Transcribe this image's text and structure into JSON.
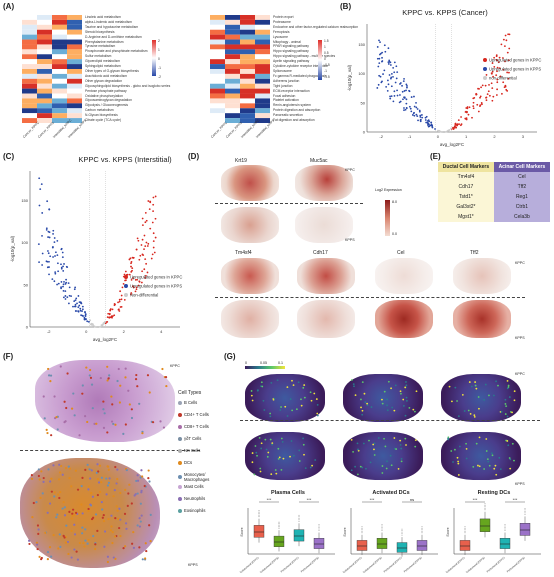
{
  "panels": {
    "A": "(A)",
    "B": "(B)",
    "C": "(C)",
    "D": "(D)",
    "E": "(E)",
    "F": "(F)",
    "G": "(G)"
  },
  "heatmap_left": {
    "rows": [
      "Linoleic acid metabolism",
      "alpha-Linolenic acid metabolism",
      "Taurine and hypotaurine metabolism",
      "Steroid biosynthesis",
      "D-Arginine and D-ornithine metabolism",
      "Phenylalanine metabolism",
      "Tyrosine metabolism",
      "Phosphonate and phosphinate metabolism",
      "Sulfur metabolism",
      "Glycerolipid metabolism",
      "Sphingolipid metabolism",
      "Other types of O-glycan biosynthesis",
      "Arachidonic acid metabolism",
      "Other glycan degradation",
      "Glycosphingolipid biosynthesis - globo and isoglobo series",
      "Pentose phosphate pathway",
      "Oxidative phosphorylation",
      "Glycosaminoglycan degradation",
      "Glycolysis / Gluconeogenesis",
      "Carbon metabolism",
      "N-Glycan biosynthesis",
      "Citrate cycle (TCA cycle)"
    ],
    "cols": [
      "Cancer_KPPC",
      "Cancer_KPPS",
      "Interstitial_KPPC",
      "Interstitial_KPPS"
    ],
    "legend": [
      "2",
      "1",
      "0",
      "-1",
      "-2"
    ]
  },
  "heatmap_right": {
    "rows": [
      "Protein export",
      "Proteasome",
      "Endocrine and other factor-regulated calcium reabsorption",
      "Ferroptosis",
      "Lysosome",
      "Mitophagy - animal",
      "PPAR signaling pathway",
      "Hippo signaling pathway",
      "Hippo signaling pathway - multiple species",
      "Apelin signaling pathway",
      "Cytokine-cytokine receptor interaction",
      "Spliceosome",
      "Fc gamma R-mediated phagocytosis",
      "Adherens junction",
      "Tight junction",
      "ECM-receptor interaction",
      "Focal adhesion",
      "Platelet activation",
      "Renin-angiotensin system",
      "Protein digestion and absorption",
      "Pancreatic secretion",
      "Fat digestion and absorption"
    ],
    "cols": [
      "Cancer_KPPC",
      "Cancer_KPPS",
      "Interstitial_KPPC",
      "Interstitial_KPPS"
    ],
    "legend": [
      "1.5",
      "1",
      "0.5",
      "0",
      "-0.5",
      "-1",
      "-1.5"
    ]
  },
  "volcano_B": {
    "title": "KPPC vs. KPPS (Cancer)",
    "xlabel": "avg_log2FC",
    "ylabel": "-log10(p_val)",
    "xticks": [
      "-2",
      "-1",
      "0",
      "1",
      "2",
      "3"
    ],
    "yticks": [
      "0",
      "50",
      "100",
      "150"
    ],
    "legend": [
      "Upregulated genes in KPPC",
      "Upregulated genes in KPPS",
      "non-differential"
    ]
  },
  "volcano_C": {
    "title": "KPPC vs. KPPS (Interstitial)",
    "xlabel": "avg_log2FC",
    "ylabel": "-log10(p_val)",
    "xticks": [
      "-2",
      "0",
      "2",
      "4"
    ],
    "yticks": [
      "0",
      "50",
      "100",
      "150"
    ],
    "legend": [
      "Upregulated genes in KPPC",
      "Upregulated genes in KPPS",
      "Non-differential"
    ]
  },
  "panel_D": {
    "genes_top": [
      "Krt19",
      "Muc5ac"
    ],
    "genes_bottom": [
      "Tm4sf4",
      "Cdh17",
      "Cel",
      "Tff2"
    ],
    "kppc": "KPPC",
    "kpps": "KPPS",
    "legend_title": "Log2 Expression",
    "legend_max": "8.0",
    "legend_min": "0.0"
  },
  "panel_E": {
    "headers": [
      "Ductal Cell Markers",
      "Acinar Cell Markers"
    ],
    "rows": [
      [
        "Tm4sf4",
        "Cel"
      ],
      [
        "Cdh17",
        "Tff2"
      ],
      [
        "Tstd1*",
        "Reg1"
      ],
      [
        "Gal3st2*",
        "Ctrb1"
      ],
      [
        "Mgst1*",
        "Cela3b"
      ]
    ]
  },
  "panel_F": {
    "kppc": "KPPC",
    "kpps": "KPPS",
    "legend_title": "Cell Types",
    "cell_types": [
      {
        "label": "B Cells",
        "color": "#9aa3b5"
      },
      {
        "label": "CD4+ T Cells",
        "color": "#c0392b"
      },
      {
        "label": "CD8+ T Cells",
        "color": "#a86ea8"
      },
      {
        "label": "γδT Cells",
        "color": "#7a8fa3"
      },
      {
        "label": "NK Cells",
        "color": "#b0b0b0"
      },
      {
        "label": "DCs",
        "color": "#e08a1e"
      },
      {
        "label": "Monocytes/ Macrophages",
        "color": "#6d8fb0"
      },
      {
        "label": "Mast Cells",
        "color": "#c7a6d3"
      },
      {
        "label": "Neutrophils",
        "color": "#8a6fb3"
      },
      {
        "label": "Eosinophils",
        "color": "#5aa0a0"
      }
    ]
  },
  "panel_G": {
    "kppc": "KPPC",
    "kpps": "KPPS",
    "colorbar": [
      "0",
      "0.05",
      "0.1"
    ],
    "box_titles": [
      "Plasma Cells",
      "Activated DCs",
      "Resting DCs"
    ],
    "ylabel": "Score",
    "sig": [
      "***",
      "***",
      "***",
      "ns",
      "***",
      "***"
    ],
    "xlabels": [
      "Juxtatumoral (KPPC)",
      "Juxtatumoral (KPPS)",
      "Peritumoral (KPPC)",
      "Peritumoral (KPPS)"
    ],
    "colors": [
      "#e8604c",
      "#66a61e",
      "#1fb3b3",
      "#9b72c8"
    ]
  }
}
